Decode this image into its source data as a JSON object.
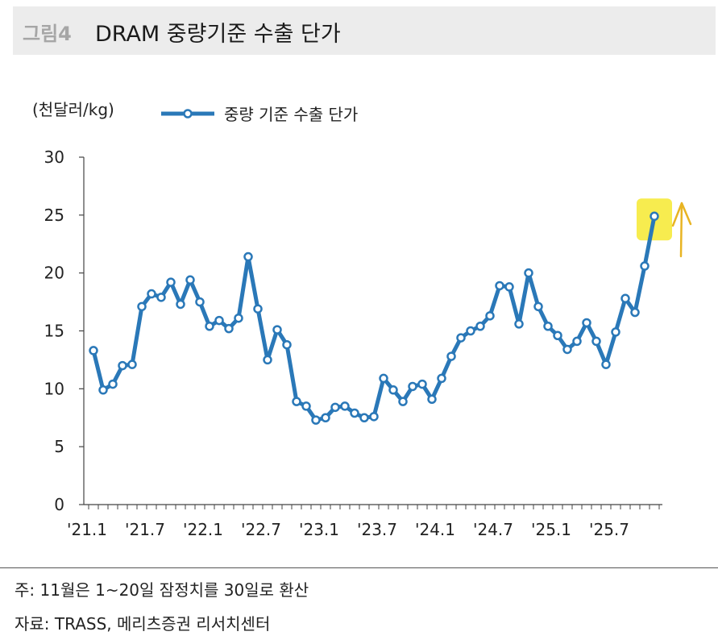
{
  "header": {
    "figure_number": "그림4",
    "title": "DRAM 중량기준 수출 단가"
  },
  "unit_label": "(천달러/kg)",
  "footer": {
    "note": "주: 11월은 1~20일 잠정치를 30일로 환산",
    "source": "자료: TRASS, 메리츠증권 리서치센터"
  },
  "colors": {
    "line": "#2a78b8",
    "highlight": "#f6ea3c",
    "annotation_arrow": "#e8b423",
    "title_bar": "#ececec"
  },
  "chart_data": {
    "type": "line",
    "title": "DRAM 중량기준 수출 단가",
    "ylabel": "(천달러/kg)",
    "xlabel": "",
    "ylim": [
      0,
      30
    ],
    "yticks": [
      0,
      5,
      10,
      15,
      20,
      25,
      30
    ],
    "xtick_labels": [
      "'21.1",
      "'21.7",
      "'22.1",
      "'22.7",
      "'23.1",
      "'23.7",
      "'24.1",
      "'24.7",
      "'25.1",
      "'25.7"
    ],
    "grid": false,
    "legend_position": "top-left",
    "annotation": "latest point highlighted with upward arrow",
    "series": [
      {
        "name": "중량 기준 수출 단가",
        "x": [
          "'21.1",
          "'21.2",
          "'21.3",
          "'21.4",
          "'21.5",
          "'21.6",
          "'21.7",
          "'21.8",
          "'21.9",
          "'21.10",
          "'21.11",
          "'21.12",
          "'22.1",
          "'22.2",
          "'22.3",
          "'22.4",
          "'22.5",
          "'22.6",
          "'22.7",
          "'22.8",
          "'22.9",
          "'22.10",
          "'22.11",
          "'22.12",
          "'23.1",
          "'23.2",
          "'23.3",
          "'23.4",
          "'23.5",
          "'23.6",
          "'23.7",
          "'23.8",
          "'23.9",
          "'23.10",
          "'23.11",
          "'23.12",
          "'24.1",
          "'24.2",
          "'24.3",
          "'24.4",
          "'24.5",
          "'24.6",
          "'24.7",
          "'24.8",
          "'24.9",
          "'24.10",
          "'24.11",
          "'24.12",
          "'25.1",
          "'25.2",
          "'25.3",
          "'25.4",
          "'25.5",
          "'25.6",
          "'25.7",
          "'25.8",
          "'25.9",
          "'25.10",
          "'25.11"
        ],
        "values": [
          13.3,
          9.9,
          10.4,
          12.0,
          12.1,
          17.1,
          18.2,
          17.9,
          19.2,
          17.3,
          19.4,
          17.5,
          15.4,
          15.9,
          15.2,
          16.1,
          21.4,
          16.9,
          12.5,
          15.1,
          13.8,
          8.9,
          8.5,
          7.3,
          7.5,
          8.4,
          8.5,
          7.9,
          7.5,
          7.6,
          10.9,
          9.9,
          8.9,
          10.2,
          10.4,
          9.1,
          10.9,
          12.8,
          14.4,
          15.0,
          15.4,
          16.3,
          18.9,
          18.8,
          15.6,
          20.0,
          17.1,
          15.4,
          14.6,
          13.4,
          14.1,
          15.7,
          14.1,
          12.1,
          14.9,
          17.8,
          16.6,
          20.6,
          24.9
        ]
      }
    ]
  }
}
